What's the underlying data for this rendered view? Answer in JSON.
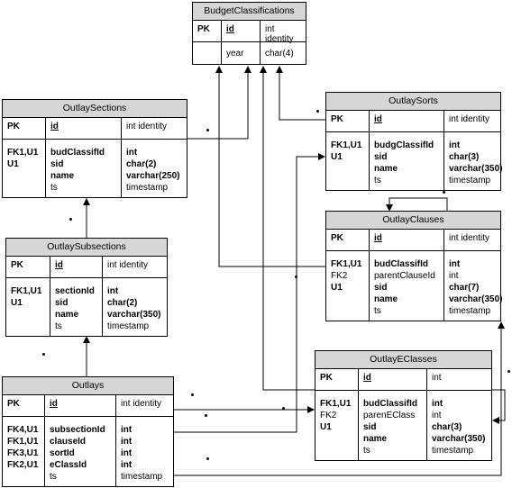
{
  "entities": {
    "budget_classifications": {
      "title": "BudgetClassifications",
      "pk_label": "PK",
      "pk_field": "id",
      "pk_type": "int identity",
      "keys": [],
      "fields": [
        "year"
      ],
      "types": [
        "char(4)"
      ]
    },
    "outlay_sections": {
      "title": "OutlaySections",
      "pk_label": "PK",
      "pk_field": "id",
      "pk_type": "int identity",
      "keys": [
        "FK1,U1",
        "U1"
      ],
      "fields": [
        "budClassifId",
        "sid",
        "name",
        "ts"
      ],
      "types": [
        "int",
        "char(2)",
        "varchar(250)",
        "timestamp"
      ]
    },
    "outlay_sorts": {
      "title": "OutlaySorts",
      "pk_label": "PK",
      "pk_field": "id",
      "pk_type": "int identity",
      "keys": [
        "FK1,U1",
        "U1"
      ],
      "fields": [
        "budgClassifId",
        "sid",
        "name",
        "ts"
      ],
      "types": [
        "int",
        "char(3)",
        "varchar(350)",
        "timestamp"
      ]
    },
    "outlay_subsections": {
      "title": "OutlaySubsections",
      "pk_label": "PK",
      "pk_field": "id",
      "pk_type": "int identity",
      "keys": [
        "FK1,U1",
        "U1"
      ],
      "fields": [
        "sectionId",
        "sid",
        "name",
        "ts"
      ],
      "types": [
        "int",
        "char(2)",
        "varchar(350)",
        "timestamp"
      ]
    },
    "outlay_clauses": {
      "title": "OutlayClauses",
      "pk_label": "PK",
      "pk_field": "id",
      "pk_type": "int identity",
      "keys": [
        "FK1,U1",
        "FK2",
        "U1"
      ],
      "fields": [
        "budClassifId",
        "parentClauseId",
        "sid",
        "name",
        "ts"
      ],
      "types": [
        "int",
        "int",
        "char(7)",
        "varchar(350)",
        "timestamp"
      ]
    },
    "outlay_eclasses": {
      "title": "OutlayEClasses",
      "pk_label": "PK",
      "pk_field": "id",
      "pk_type": "int",
      "keys": [
        "FK1,U1",
        "FK2",
        "U1"
      ],
      "fields": [
        "budClassifId",
        "parenEClass",
        "sid",
        "name",
        "ts"
      ],
      "types": [
        "int",
        "int",
        "char(3)",
        "varchar(350)",
        "timestamp"
      ]
    },
    "outlays": {
      "title": "Outlays",
      "pk_label": "PK",
      "pk_field": "id",
      "pk_type": "int identity",
      "keys": [
        "FK4,U1",
        "FK1,U1",
        "FK3,U1",
        "FK2,U1"
      ],
      "fields": [
        "subsectionId",
        "clauseId",
        "sortId",
        "eClassId",
        "ts"
      ],
      "types": [
        "int",
        "int",
        "int",
        "int",
        "timestamp"
      ]
    }
  }
}
